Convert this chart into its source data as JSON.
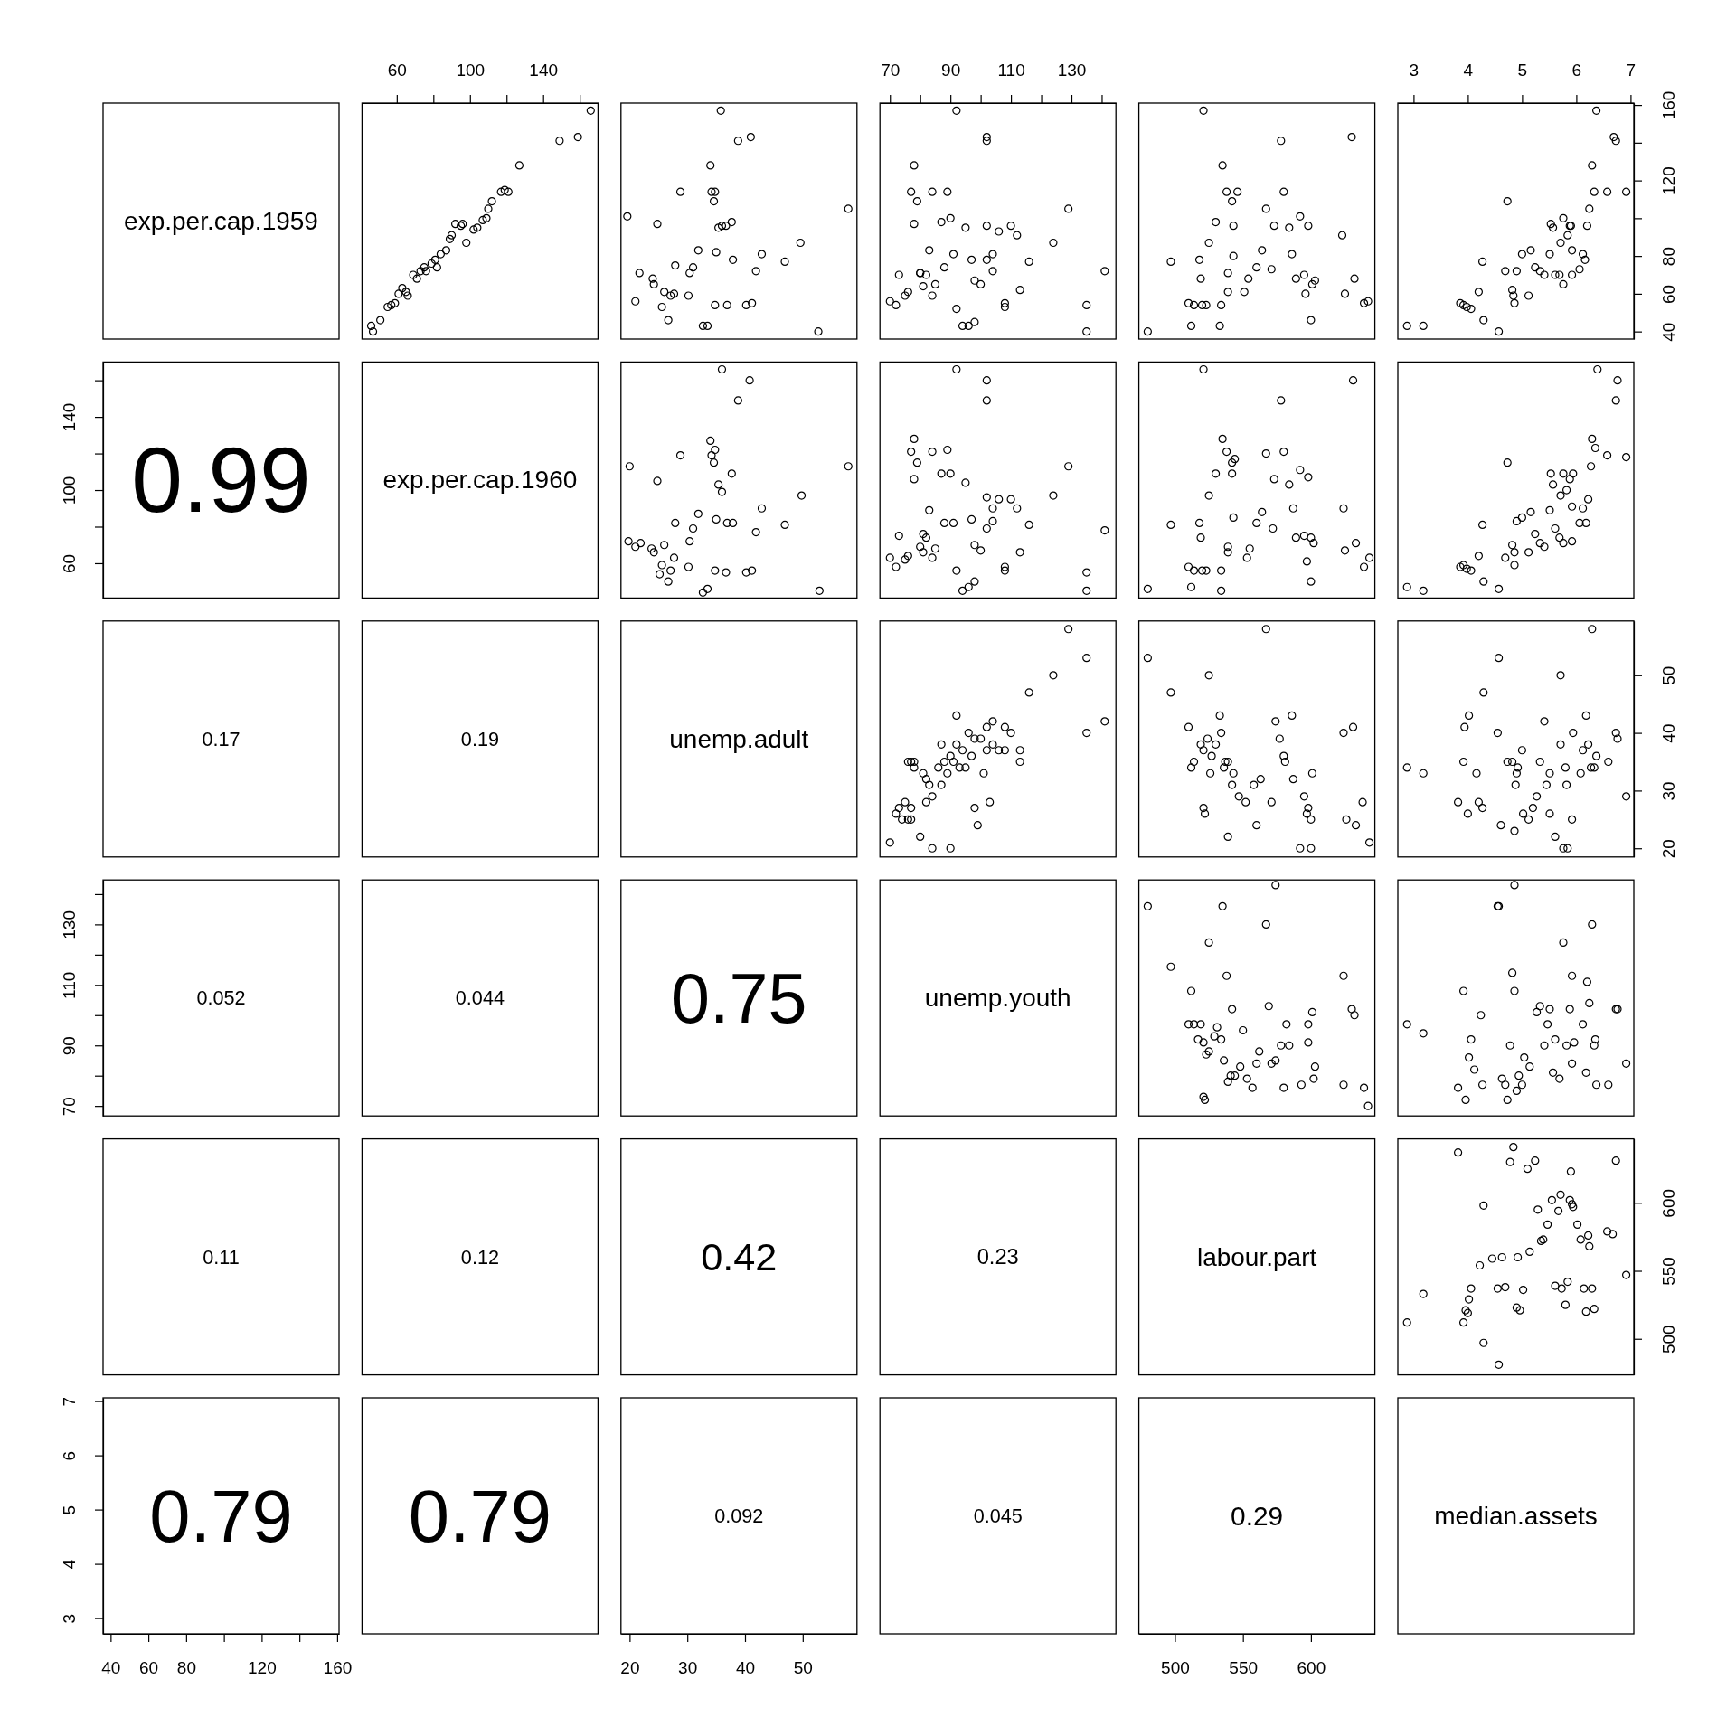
{
  "chart_data": [
    {
      "type": "other",
      "title": "exp.per.cap.1959"
    },
    {
      "type": "scatter",
      "marker": "circle",
      "xlim": [
        41,
        170
      ],
      "ylim": [
        36,
        161
      ],
      "xticks": [
        60,
        {
          "value": 80,
          "label": null
        },
        100,
        {
          "value": 120,
          "label": null
        },
        140,
        {
          "value": 160,
          "label": null
        }
      ],
      "tick_labels": "x",
      "x": [
        46,
        47,
        51,
        55,
        57,
        59,
        61,
        63,
        65,
        66,
        69,
        71,
        73,
        75,
        76,
        79,
        81,
        82,
        84,
        87,
        89,
        90,
        92,
        95,
        96,
        98,
        102,
        104,
        107,
        109,
        110,
        112,
        117,
        119,
        121,
        127,
        149,
        159,
        166
      ],
      "values": [
        43,
        40,
        46,
        53,
        54,
        55,
        60,
        63,
        61,
        59,
        70,
        68,
        72,
        74,
        72,
        76,
        78,
        74,
        81,
        83,
        89,
        91,
        97,
        96,
        97,
        87,
        94,
        95,
        99,
        100,
        105,
        109,
        114,
        115,
        114,
        128,
        141,
        143,
        157
      ]
    },
    {
      "type": "scatter",
      "marker": "circle",
      "xlim": [
        18.5,
        59.4
      ],
      "ylim": [
        36,
        161
      ],
      "tick_labels": false,
      "x": [
        19.6,
        21,
        21.7,
        24,
        24.2,
        24.8,
        25.6,
        26,
        26.7,
        27.1,
        27.7,
        27.9,
        28.8,
        30.2,
        30.4,
        31,
        31.9,
        32.7,
        33.5,
        34,
        34.2,
        34.8,
        34.6,
        34.8,
        35,
        35.4,
        35.8,
        36,
        36.7,
        36.9,
        37.7,
        37.9,
        38.8,
        40.2,
        41,
        41.2,
        41.9,
        42.9,
        46.9,
        49.6,
        52.7,
        57.9
      ],
      "values": [
        101,
        56,
        71,
        68,
        65,
        97,
        53,
        61,
        46,
        59,
        60,
        75,
        114,
        59,
        71,
        74,
        83,
        43,
        43,
        128,
        114,
        114,
        109,
        54,
        82,
        95,
        157,
        96,
        96,
        54,
        98,
        78,
        141,
        54,
        143,
        55,
        72,
        81,
        77,
        87,
        40,
        105
      ]
    },
    {
      "type": "scatter",
      "marker": "circle",
      "xlim": [
        66.7,
        144.7
      ],
      "ylim": [
        36,
        161
      ],
      "xticks": [
        70,
        {
          "value": 80,
          "label": null
        },
        90,
        {
          "value": 100,
          "label": null
        },
        110,
        {
          "value": 120,
          "label": null
        },
        130,
        {
          "value": 140,
          "label": null
        }
      ],
      "tick_labels": "x",
      "x": [
        70,
        72,
        73,
        75,
        76,
        77,
        78,
        79,
        78,
        80,
        80,
        81,
        82,
        83,
        84,
        84,
        85,
        87,
        88,
        89,
        90,
        92,
        91,
        94,
        95,
        96,
        97,
        98,
        98,
        100,
        102,
        102,
        102,
        102,
        104,
        104,
        106,
        108,
        108,
        110,
        112,
        113,
        116,
        124,
        129,
        135,
        135,
        141,
        92
      ],
      "values": [
        56,
        54,
        70,
        59,
        61,
        114,
        128,
        109,
        97,
        71,
        71,
        64,
        70,
        83,
        114,
        59,
        65,
        98,
        74,
        114,
        100,
        52,
        81,
        43,
        95,
        43,
        78,
        45,
        67,
        65,
        96,
        143,
        141,
        78,
        81,
        72,
        93,
        53,
        55,
        96,
        91,
        62,
        77,
        87,
        105,
        54,
        40,
        72,
        157
      ]
    },
    {
      "type": "scatter",
      "marker": "circle",
      "xlim": [
        473.5,
        647
      ],
      "ylim": [
        36,
        161
      ],
      "tick_labels": false,
      "x": [
        480,
        497,
        510,
        512,
        514,
        518,
        519,
        520,
        523,
        521,
        525,
        530,
        533,
        534,
        535,
        538,
        539,
        539,
        542,
        543,
        546,
        543,
        551,
        554,
        560,
        564,
        567,
        571,
        573,
        578,
        580,
        584,
        586,
        589,
        592,
        595,
        596,
        598,
        601,
        603,
        600,
        623,
        625,
        630,
        632,
        639,
        642
      ],
      "values": [
        40,
        77,
        55,
        43,
        54,
        78,
        68,
        54,
        54,
        157,
        87,
        98,
        43,
        54,
        128,
        114,
        61,
        71,
        109,
        96,
        114,
        80,
        61,
        68,
        74,
        83,
        105,
        73,
        96,
        141,
        114,
        95,
        81,
        68,
        101,
        70,
        60,
        96,
        65,
        67,
        46,
        91,
        60,
        143,
        68,
        55,
        56
      ]
    },
    {
      "type": "scatter",
      "marker": "circle",
      "xlim": [
        2.71,
        7.06
      ],
      "ylim": [
        36,
        161
      ],
      "xticks": [
        3,
        4,
        5,
        6,
        7
      ],
      "yticks": [
        40,
        60,
        80,
        {
          "value": 100,
          "label": null
        },
        120,
        {
          "value": 140,
          "label": null
        },
        160
      ],
      "x": [
        2.88,
        3.18,
        3.86,
        3.92,
        3.98,
        4.06,
        4.2,
        4.27,
        4.29,
        4.57,
        4.69,
        4.73,
        4.82,
        4.84,
        4.86,
        4.9,
        5,
        5.12,
        5.16,
        5.24,
        5.33,
        5.41,
        5.51,
        5.53,
        5.57,
        5.61,
        5.69,
        5.71,
        5.76,
        5.76,
        5.84,
        5.88,
        5.9,
        5.92,
        5.92,
        6.06,
        6.12,
        6.16,
        6.2,
        6.24,
        6.29,
        6.33,
        6.37,
        6.57,
        6.69,
        6.73,
        6.92
      ],
      "values": [
        43,
        43,
        55,
        54,
        53,
        52,
        61,
        77,
        46,
        40,
        72,
        109,
        62,
        59,
        55,
        72,
        81,
        59,
        83,
        74,
        72,
        70,
        81,
        97,
        95,
        70,
        70,
        87,
        100,
        65,
        91,
        96,
        96,
        70,
        83,
        73,
        81,
        78,
        96,
        105,
        128,
        114,
        157,
        114,
        143,
        141,
        114
      ]
    },
    {
      "type": "scatter",
      "annotations": [
        "0.99"
      ],
      "xlim": [
        36,
        161
      ],
      "tick_labels": "y",
      "ylim": [
        41,
        170
      ],
      "yticks": [
        60,
        {
          "value": 80,
          "label": null
        },
        100,
        {
          "value": 120,
          "label": null
        },
        140,
        {
          "value": 160,
          "label": null
        }
      ]
    },
    {
      "type": "other",
      "title": "exp.per.cap.1960"
    },
    {
      "type": "scatter",
      "marker": "circle",
      "xlim": [
        18.5,
        59.4
      ],
      "ylim": [
        41,
        170
      ],
      "tick_labels": false,
      "x": [
        20,
        19.8,
        21,
        21.9,
        23.8,
        24.2,
        24.8,
        25.2,
        25.6,
        26,
        26.7,
        27.1,
        27.7,
        27.9,
        28.8,
        30.2,
        30.4,
        31,
        31.9,
        32.7,
        33.5,
        34,
        34.2,
        34.8,
        34.6,
        34.8,
        35,
        35.4,
        36,
        36,
        36.7,
        36.9,
        37.7,
        37.9,
        38.8,
        40.2,
        40.8,
        41.2,
        41.9,
        42.9,
        46.9,
        49.8,
        52.9,
        57.9
      ],
      "values": [
        113,
        72,
        69,
        71,
        68,
        66,
        105,
        54,
        59,
        70,
        50,
        56,
        63,
        82,
        119,
        58,
        72,
        79,
        87,
        44,
        46,
        127,
        119,
        122,
        115,
        56,
        84,
        103,
        166,
        99,
        55,
        82,
        109,
        82,
        149,
        55,
        160,
        56,
        77,
        90,
        81,
        97,
        45,
        113
      ]
    },
    {
      "type": "scatter",
      "marker": "circle",
      "xlim": [
        66.7,
        144.7
      ],
      "ylim": [
        41,
        170
      ],
      "tick_labels": false,
      "x": [
        70,
        72,
        73,
        75,
        76,
        77,
        78,
        79,
        78,
        80,
        81,
        81,
        82,
        83,
        84,
        84,
        85,
        87,
        88,
        89,
        90,
        92,
        91,
        92,
        94,
        95,
        96,
        97,
        98,
        98,
        100,
        102,
        102,
        102,
        102,
        104,
        104,
        106,
        108,
        108,
        110,
        112,
        113,
        116,
        124,
        129,
        135,
        135,
        141
      ],
      "values": [
        63,
        58,
        75,
        62,
        64,
        121,
        128,
        115,
        106,
        69,
        66,
        76,
        74,
        89,
        121,
        63,
        68,
        109,
        82,
        122,
        109,
        56,
        82,
        166,
        45,
        104,
        47,
        84,
        50,
        70,
        67,
        96,
        160,
        149,
        79,
        90,
        83,
        95,
        56,
        58,
        95,
        90,
        66,
        81,
        97,
        113,
        55,
        45,
        78
      ]
    },
    {
      "type": "scatter",
      "marker": "circle",
      "xlim": [
        473.5,
        647
      ],
      "ylim": [
        41,
        170
      ],
      "tick_labels": false,
      "x": [
        480,
        497,
        510,
        512,
        514,
        518,
        519,
        520,
        523,
        521,
        525,
        530,
        534,
        534,
        535,
        538,
        539,
        539,
        542,
        542,
        544,
        543,
        553,
        555,
        560,
        564,
        567,
        572,
        573,
        578,
        580,
        584,
        587,
        589,
        592,
        595,
        597,
        598,
        600,
        602,
        600,
        624,
        625,
        631,
        633,
        639,
        643
      ],
      "values": [
        46,
        81,
        58,
        47,
        56,
        82,
        74,
        56,
        56,
        166,
        97,
        109,
        45,
        56,
        128,
        121,
        66,
        69,
        115,
        109,
        117,
        85,
        63,
        68,
        82,
        88,
        120,
        79,
        106,
        149,
        121,
        103,
        90,
        74,
        111,
        75,
        61,
        107,
        74,
        71,
        50,
        90,
        67,
        160,
        71,
        58,
        63
      ]
    },
    {
      "type": "scatter",
      "marker": "circle",
      "xlim": [
        2.71,
        7.06
      ],
      "ylim": [
        41,
        170
      ],
      "tick_labels": false,
      "x": [
        2.88,
        3.18,
        3.86,
        3.92,
        3.98,
        4.06,
        4.2,
        4.27,
        4.29,
        4.57,
        4.69,
        4.73,
        4.82,
        4.86,
        4.86,
        4.9,
        5,
        5.12,
        5.16,
        5.24,
        5.33,
        5.41,
        5.51,
        5.53,
        5.57,
        5.61,
        5.69,
        5.71,
        5.76,
        5.76,
        5.82,
        5.88,
        5.94,
        5.92,
        5.92,
        6.06,
        6.12,
        6.18,
        6.22,
        6.27,
        6.29,
        6.35,
        6.39,
        6.57,
        6.73,
        6.76,
        6.92
      ],
      "values": [
        47,
        45,
        58,
        59,
        57,
        56,
        64,
        81,
        50,
        46,
        63,
        115,
        70,
        66,
        59,
        83,
        85,
        66,
        88,
        76,
        71,
        69,
        89,
        109,
        103,
        79,
        74,
        97,
        109,
        71,
        100,
        106,
        109,
        72,
        91,
        82,
        90,
        82,
        95,
        113,
        128,
        123,
        166,
        119,
        149,
        160,
        118
      ]
    },
    {
      "type": "other",
      "annotations": [
        "0.17"
      ]
    },
    {
      "type": "other",
      "annotations": [
        "0.19"
      ]
    },
    {
      "type": "other",
      "title": "unemp.adult"
    },
    {
      "type": "scatter",
      "marker": "circle",
      "xlim": [
        66.7,
        144.7
      ],
      "ylim": [
        18.5,
        59.4
      ],
      "tick_labels": false,
      "x": [
        70,
        72,
        73,
        74,
        75,
        76,
        76,
        77,
        77,
        77,
        78,
        78,
        80,
        81,
        82,
        83,
        82,
        84,
        84,
        86,
        87,
        87,
        88,
        89,
        90,
        90,
        91,
        92,
        92,
        93,
        94,
        95,
        96,
        97,
        98,
        98,
        99,
        100,
        101,
        102,
        102,
        103,
        104,
        104,
        106,
        108,
        108,
        110,
        113,
        113,
        116,
        124,
        129,
        135,
        135,
        141
      ],
      "values": [
        21,
        26,
        27,
        25,
        28,
        25,
        35,
        35,
        27,
        25,
        34,
        35,
        22,
        33,
        28,
        31,
        32,
        20,
        29,
        34,
        38,
        31,
        35,
        33,
        36,
        20,
        35,
        38,
        43,
        34,
        37,
        34,
        40,
        36,
        39,
        27,
        24,
        39,
        33,
        37,
        41,
        28,
        42,
        38,
        37,
        41,
        37,
        40,
        35,
        37,
        47,
        50,
        58,
        53,
        40,
        42
      ]
    },
    {
      "type": "scatter",
      "marker": "circle",
      "xlim": [
        473.5,
        647
      ],
      "ylim": [
        18.5,
        59.4
      ],
      "tick_labels": false,
      "x": [
        480,
        497,
        510,
        512,
        514,
        519,
        521,
        521,
        522,
        524,
        525,
        526,
        527,
        530,
        533,
        534,
        536,
        537,
        539,
        539,
        542,
        543,
        547,
        552,
        558,
        560,
        563,
        567,
        571,
        574,
        577,
        580,
        581,
        586,
        587,
        595,
        597,
        598,
        600,
        601,
        592,
        600,
        624,
        626,
        631,
        633,
        638,
        643
      ],
      "values": [
        53,
        47,
        41,
        34,
        35,
        38,
        37,
        27,
        26,
        39,
        50,
        33,
        36,
        38,
        43,
        40,
        34,
        35,
        35,
        22,
        31,
        33,
        29,
        28,
        31,
        24,
        32,
        58,
        28,
        42,
        39,
        36,
        35,
        43,
        32,
        29,
        26,
        27,
        25,
        33,
        20,
        20,
        40,
        25,
        41,
        24,
        28,
        21
      ]
    },
    {
      "type": "scatter",
      "marker": "circle",
      "xlim": [
        2.71,
        7.06
      ],
      "ylim": [
        18.5,
        59.4
      ],
      "yticks": [
        20,
        30,
        40,
        50
      ],
      "tick_labels": "y",
      "x": [
        2.88,
        3.18,
        3.82,
        3.92,
        3.94,
        4,
        4.02,
        4.16,
        4.2,
        4.27,
        4.29,
        4.57,
        4.55,
        4.61,
        4.73,
        4.82,
        4.86,
        4.88,
        4.9,
        4.92,
        5,
        5.02,
        5.12,
        5.2,
        5.27,
        5.33,
        5.41,
        5.45,
        5.51,
        5.51,
        5.61,
        5.71,
        5.71,
        5.76,
        5.8,
        5.82,
        5.84,
        5.92,
        5.94,
        6.08,
        6.12,
        6.18,
        6.22,
        6.27,
        6.29,
        6.33,
        6.37,
        6.59,
        6.73,
        6.76,
        6.92
      ],
      "values": [
        34,
        33,
        28,
        35,
        41,
        26,
        43,
        33,
        28,
        27,
        47,
        53,
        40,
        24,
        35,
        35,
        23,
        31,
        33,
        34,
        37,
        26,
        25,
        27,
        29,
        35,
        42,
        31,
        33,
        26,
        22,
        50,
        38,
        20,
        34,
        31,
        20,
        25,
        40,
        33,
        37,
        43,
        38,
        34,
        58,
        34,
        36,
        35,
        40,
        39,
        29
      ]
    },
    {
      "type": "scatter",
      "annotations": [
        "0.052"
      ],
      "xlim": [
        36,
        161
      ],
      "tick_labels": "y",
      "ylim": [
        66.7,
        144.7
      ],
      "yticks": [
        70,
        {
          "value": 80,
          "label": null
        },
        90,
        {
          "value": 100,
          "label": null
        },
        110,
        {
          "value": 120,
          "label": null
        },
        130,
        {
          "value": 140,
          "label": null
        }
      ]
    },
    {
      "type": "other",
      "annotations": [
        "0.044"
      ]
    },
    {
      "type": "other",
      "annotations": [
        "0.75"
      ]
    },
    {
      "type": "other",
      "title": "unemp.youth"
    },
    {
      "type": "scatter",
      "marker": "circle",
      "xlim": [
        473.5,
        647
      ],
      "ylim": [
        66.7,
        144.7
      ],
      "tick_labels": false,
      "x": [
        480,
        574,
        497,
        510,
        512,
        514,
        517,
        519,
        521,
        521,
        522,
        523,
        525,
        525,
        529,
        531,
        534,
        535,
        536,
        538,
        539,
        541,
        542,
        544,
        548,
        550,
        553,
        557,
        560,
        562,
        567,
        569,
        571,
        574,
        578,
        580,
        582,
        584,
        593,
        598,
        598,
        601,
        602,
        603,
        624,
        624,
        630,
        632,
        639,
        642
      ],
      "values": [
        136,
        143,
        116,
        97,
        108,
        97,
        92,
        97,
        91,
        73,
        72,
        87,
        88,
        124,
        93,
        96,
        92,
        136,
        85,
        113,
        78,
        80,
        102,
        80,
        83,
        95,
        79,
        76,
        84,
        88,
        130,
        103,
        84,
        85,
        90,
        76,
        97,
        90,
        77,
        91,
        97,
        101,
        79,
        83,
        113,
        77,
        102,
        100,
        76,
        70
      ]
    },
    {
      "type": "scatter",
      "marker": "circle",
      "xlim": [
        2.71,
        7.06
      ],
      "ylim": [
        66.7,
        144.7
      ],
      "tick_labels": false,
      "x": [
        2.88,
        3.18,
        3.82,
        3.92,
        3.96,
        4.02,
        4.06,
        4.12,
        4.24,
        4.27,
        4.55,
        4.57,
        4.63,
        4.69,
        4.73,
        4.78,
        4.82,
        4.86,
        4.9,
        4.94,
        5,
        5.04,
        5.14,
        5.27,
        5.33,
        5.41,
        5.47,
        5.51,
        5.57,
        5.61,
        5.69,
        5.76,
        5.82,
        5.88,
        5.92,
        5.92,
        5.96,
        6.12,
        6.18,
        6.2,
        6.24,
        6.29,
        6.33,
        6.35,
        6.37,
        6.59,
        6.73,
        6.76,
        6.92,
        4.86
      ],
      "values": [
        97,
        94,
        76,
        108,
        72,
        86,
        92,
        82,
        100,
        77,
        136,
        136,
        79,
        77,
        72,
        90,
        114,
        108,
        75,
        80,
        77,
        86,
        83,
        101,
        103,
        90,
        97,
        102,
        81,
        92,
        79,
        124,
        90,
        102,
        84,
        113,
        91,
        97,
        81,
        111,
        104,
        130,
        90,
        92,
        77,
        77,
        102,
        102,
        84,
        143
      ]
    },
    {
      "type": "other",
      "annotations": [
        "0.11"
      ]
    },
    {
      "type": "other",
      "annotations": [
        "0.12"
      ]
    },
    {
      "type": "other",
      "annotations": [
        "0.42"
      ]
    },
    {
      "type": "other",
      "annotations": [
        "0.23"
      ]
    },
    {
      "type": "other",
      "title": "labour.part"
    },
    {
      "type": "scatter",
      "marker": "circle",
      "xlim": [
        2.71,
        7.06
      ],
      "ylim": [
        473.5,
        647
      ],
      "yticks": [
        500,
        550,
        600
      ],
      "tick_labels": "y",
      "x": [
        2.88,
        3.18,
        3.82,
        3.92,
        3.96,
        4,
        4.02,
        4.06,
        4.22,
        4.29,
        4.29,
        4.45,
        4.55,
        4.63,
        4.69,
        4.78,
        4.84,
        4.9,
        4.92,
        4.96,
        5.02,
        5.1,
        5.14,
        5.24,
        5.29,
        5.35,
        5.39,
        5.47,
        5.55,
        5.61,
        5.67,
        5.71,
        5.73,
        5.8,
        5.84,
        5.88,
        5.9,
        5.92,
        5.94,
        6.02,
        6.08,
        6.14,
        6.18,
        6.22,
        6.24,
        6.29,
        6.33,
        6.57,
        6.67,
        6.73,
        6.92,
        4.57
      ],
      "values": [
        512,
        533,
        637,
        512,
        521,
        519,
        529,
        537,
        554,
        598,
        497,
        559,
        537,
        560,
        538,
        630,
        641,
        523,
        560,
        521,
        536,
        625,
        564,
        631,
        595,
        572,
        573,
        584,
        602,
        539,
        594,
        606,
        537,
        525,
        542,
        602,
        623,
        599,
        597,
        584,
        573,
        537,
        520,
        576,
        568,
        537,
        522,
        579,
        577,
        631,
        547,
        481
      ]
    },
    {
      "type": "scatter",
      "annotations": [
        "0.79"
      ],
      "xlim": [
        36,
        161
      ],
      "xticks": [
        40,
        60,
        80,
        {
          "value": 100,
          "label": null
        },
        120,
        {
          "value": 140,
          "label": null
        },
        160
      ],
      "ylim": [
        2.71,
        7.06
      ],
      "yticks": [
        3,
        4,
        5,
        6,
        7
      ]
    },
    {
      "type": "other",
      "annotations": [
        "0.79"
      ]
    },
    {
      "type": "scatter",
      "annotations": [
        "0.092"
      ],
      "ylim": [
        2.71,
        7.06
      ],
      "tick_labels": "x",
      "xlim": [
        18.5,
        59.4
      ],
      "xticks": [
        20,
        30,
        40,
        50
      ]
    },
    {
      "type": "other",
      "annotations": [
        "0.045"
      ]
    },
    {
      "type": "scatter",
      "annotations": [
        "0.29"
      ],
      "ylim": [
        2.71,
        7.06
      ],
      "tick_labels": "x",
      "xlim": [
        473.5,
        647
      ],
      "xticks": [
        500,
        550,
        600
      ]
    },
    {
      "type": "other",
      "title": "median.assets"
    }
  ]
}
